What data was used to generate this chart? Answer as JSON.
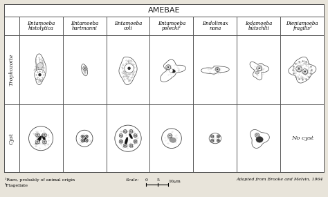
{
  "title": "AMEBAE",
  "bg_color": "#e8e4da",
  "border_color": "#555555",
  "row_labels": [
    "Trophozoite",
    "Cyst"
  ],
  "col_headers": [
    [
      "Entamoeba",
      "histolytica"
    ],
    [
      "Entamoeba",
      "hartmanni"
    ],
    [
      "Entamoeba",
      "coli"
    ],
    [
      "Entamoeba",
      "polecki¹"
    ],
    [
      "Endolimax",
      "nana"
    ],
    [
      "Iodamoeba",
      "bütschlii"
    ],
    [
      "Dieniamoeba",
      "fragilis²"
    ]
  ],
  "footnote1": "¹Rare, probably of animal origin",
  "footnote2": "²Flagellate",
  "adapted": "Adapted from Brooke and Melvin, 1964",
  "no_cyst_text": "No cyst",
  "title_fontsize": 8,
  "header_fontsize": 5.0,
  "row_label_fontsize": 5.5,
  "footnote_fontsize": 4.5
}
